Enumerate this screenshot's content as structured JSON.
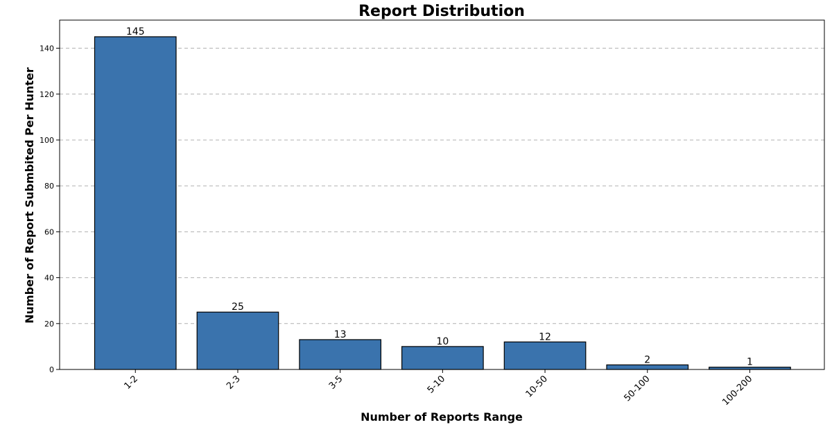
{
  "chart_data": {
    "type": "bar",
    "title": "Report Distribution",
    "xlabel": "Number of Reports Range",
    "ylabel": "Number of Report Submbited Per Hunter",
    "categories": [
      "1-2",
      "2-3",
      "3-5",
      "5-10",
      "10-50",
      "50-100",
      "100-200"
    ],
    "values": [
      145,
      25,
      13,
      10,
      12,
      2,
      1
    ],
    "yticks": [
      0,
      20,
      40,
      60,
      80,
      100,
      120,
      140
    ],
    "ylim": [
      0,
      152.25
    ],
    "grid": true,
    "bar_color": "#3a73ad",
    "edge_color": "#000000"
  }
}
